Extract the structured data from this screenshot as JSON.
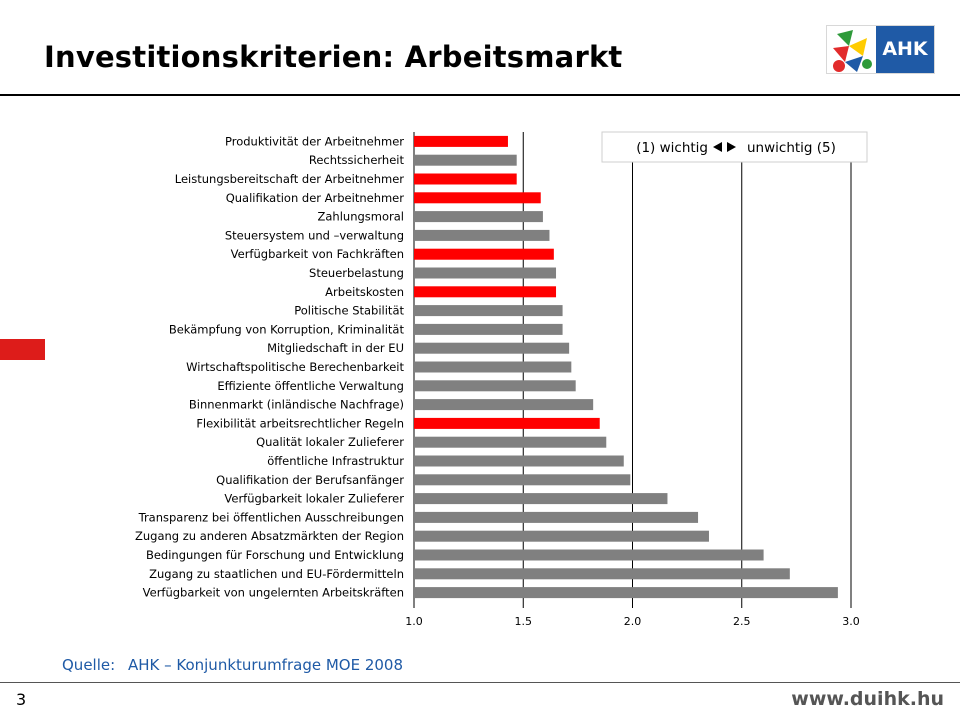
{
  "slide": {
    "title": "Investitionskriterien: Arbeitsmarkt",
    "logo_text": "AHK",
    "source_label": "Quelle:",
    "source_text": "AHK – Konjunkturumfrage MOE 2008",
    "page_number": "3",
    "website": "www.duihk.hu"
  },
  "colors": {
    "highlight_bar": "#ff0000",
    "normal_bar": "#808080",
    "accent_blue": "#1f5aa6"
  },
  "chart_data": {
    "type": "bar",
    "orientation": "horizontal",
    "title": "",
    "xlabel": "",
    "ylabel": "",
    "legend_box": {
      "left": "(1) wichtig",
      "right": "unwichtig (5)"
    },
    "xlim": [
      1.0,
      3.0
    ],
    "x_ticks": [
      "1.0",
      "1.5",
      "2.0",
      "2.5",
      "3.0"
    ],
    "grid": true,
    "categories": [
      "Produktivität der Arbeitnehmer",
      "Rechtssicherheit",
      "Leistungsbereitschaft der Arbeitnehmer",
      "Qualifikation der Arbeitnehmer",
      "Zahlungsmoral",
      "Steuersystem und –verwaltung",
      "Verfügbarkeit von Fachkräften",
      "Steuerbelastung",
      "Arbeitskosten",
      "Politische Stabilität",
      "Bekämpfung von Korruption, Kriminalität",
      "Mitgliedschaft in der EU",
      "Wirtschaftspolitische Berechenbarkeit",
      "Effiziente öffentliche Verwaltung",
      "Binnenmarkt (inländische Nachfrage)",
      "Flexibilität arbeitsrechtlicher Regeln",
      "Qualität lokaler Zulieferer",
      "öffentliche Infrastruktur",
      "Qualifikation der Berufsanfänger",
      "Verfügbarkeit lokaler Zulieferer",
      "Transparenz bei öffentlichen Ausschreibungen",
      "Zugang zu anderen Absatzmärkten der Region",
      "Bedingungen für Forschung und Entwicklung",
      "Zugang zu staatlichen und EU-Fördermitteln",
      "Verfügbarkeit von ungelernten Arbeitskräften"
    ],
    "values": [
      1.43,
      1.47,
      1.47,
      1.58,
      1.59,
      1.62,
      1.64,
      1.65,
      1.65,
      1.68,
      1.68,
      1.71,
      1.72,
      1.74,
      1.82,
      1.85,
      1.88,
      1.96,
      1.99,
      2.16,
      2.3,
      2.35,
      2.6,
      2.72,
      2.94
    ],
    "highlighted": [
      true,
      false,
      true,
      true,
      false,
      false,
      true,
      false,
      true,
      false,
      false,
      false,
      false,
      false,
      false,
      true,
      false,
      false,
      false,
      false,
      false,
      false,
      false,
      false,
      false
    ]
  }
}
